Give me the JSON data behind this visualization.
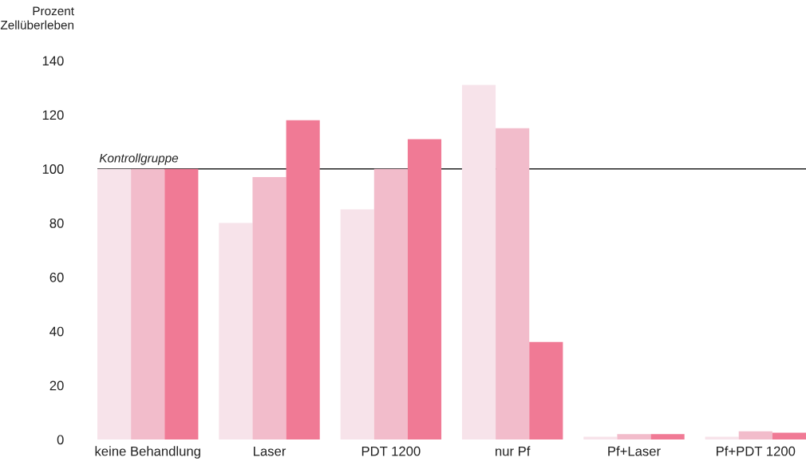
{
  "chart_data": {
    "type": "bar",
    "ylabel": "Prozent\nZellüberleben",
    "categories": [
      "keine Behandlung",
      "Laser",
      "PDT 1200",
      "nur Pf",
      "Pf+Laser",
      "Pf+PDT 1200"
    ],
    "series": [
      {
        "color": "#f7e3ea",
        "values": [
          100,
          80,
          85,
          131,
          1,
          1
        ]
      },
      {
        "color": "#f2bccb",
        "values": [
          100,
          97,
          100,
          115,
          2,
          3
        ]
      },
      {
        "color": "#f07a95",
        "values": [
          100,
          118,
          111,
          36,
          2,
          2.5
        ]
      }
    ],
    "ylim": [
      0,
      140
    ],
    "yticks": [
      0,
      20,
      40,
      60,
      80,
      100,
      120,
      140
    ],
    "ref_lines": [
      {
        "axis": "y",
        "value": 100,
        "label": "Kontrollgruppe",
        "color": "#222222",
        "line_style": "solid"
      }
    ],
    "grid": false,
    "legend": false
  }
}
